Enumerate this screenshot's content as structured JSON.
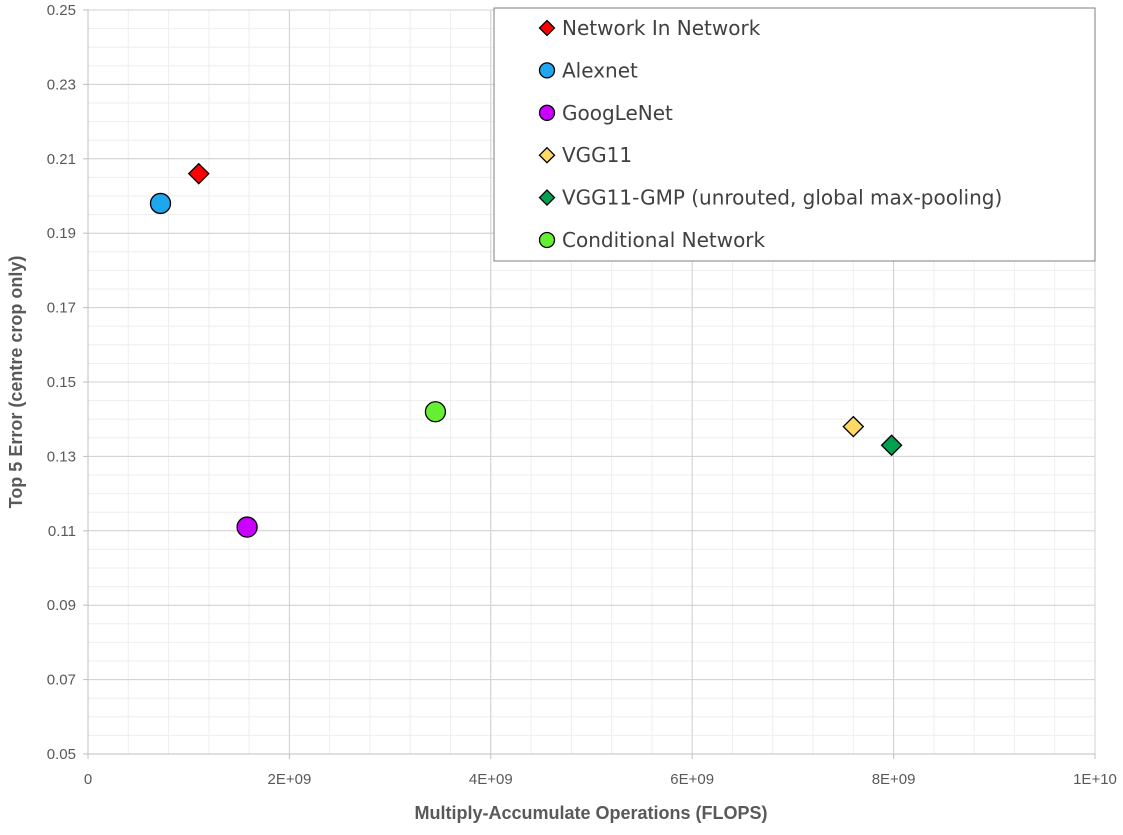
{
  "chart_data": {
    "type": "scatter",
    "title": "",
    "xlabel": "Multiply-Accumulate Operations (FLOPS)",
    "ylabel": "Top 5 Error (centre crop only)",
    "xlim": [
      0,
      10000000000
    ],
    "ylim": [
      0.05,
      0.25
    ],
    "x_ticks": [
      {
        "value": 0,
        "label": "0"
      },
      {
        "value": 2000000000,
        "label": "2E+09"
      },
      {
        "value": 4000000000,
        "label": "4E+09"
      },
      {
        "value": 6000000000,
        "label": "6E+09"
      },
      {
        "value": 8000000000,
        "label": "8E+09"
      },
      {
        "value": 10000000000,
        "label": "1E+10"
      }
    ],
    "y_ticks": [
      {
        "value": 0.05,
        "label": "0.05"
      },
      {
        "value": 0.07,
        "label": "0.07"
      },
      {
        "value": 0.09,
        "label": "0.09"
      },
      {
        "value": 0.11,
        "label": "0.11"
      },
      {
        "value": 0.13,
        "label": "0.13"
      },
      {
        "value": 0.15,
        "label": "0.15"
      },
      {
        "value": 0.17,
        "label": "0.17"
      },
      {
        "value": 0.19,
        "label": "0.19"
      },
      {
        "value": 0.21,
        "label": "0.21"
      },
      {
        "value": 0.23,
        "label": "0.23"
      },
      {
        "value": 0.25,
        "label": "0.25"
      }
    ],
    "grid": true,
    "minor_grid": true,
    "legend_position": "top-right",
    "series": [
      {
        "name": "Network In Network",
        "marker": "diamond",
        "color": "#ff0000",
        "points": [
          {
            "x": 1100000000,
            "y": 0.206
          }
        ]
      },
      {
        "name": "Alexnet",
        "marker": "circle",
        "color": "#1ea6ef",
        "points": [
          {
            "x": 720000000,
            "y": 0.198
          }
        ]
      },
      {
        "name": "GoogLeNet",
        "marker": "circle",
        "color": "#cc00ff",
        "points": [
          {
            "x": 1580000000,
            "y": 0.111
          }
        ]
      },
      {
        "name": "VGG11",
        "marker": "diamond",
        "color": "#ffd966",
        "points": [
          {
            "x": 7600000000,
            "y": 0.138
          }
        ]
      },
      {
        "name": "VGG11-GMP (unrouted, global max-pooling)",
        "marker": "diamond",
        "color": "#00a050",
        "points": [
          {
            "x": 7980000000,
            "y": 0.133
          }
        ]
      },
      {
        "name": "Conditional Network",
        "marker": "circle",
        "color": "#66ee33",
        "points": [
          {
            "x": 3450000000,
            "y": 0.142
          }
        ]
      }
    ]
  }
}
